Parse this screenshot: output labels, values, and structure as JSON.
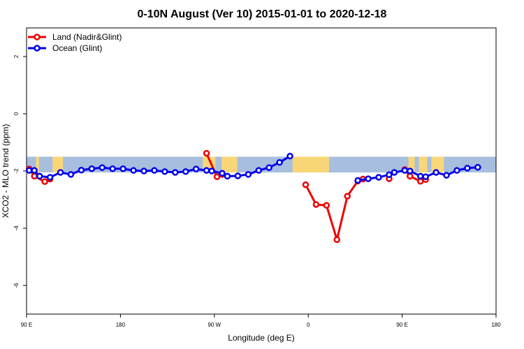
{
  "chart_data": {
    "type": "line",
    "title": "0-10N August (Ver 10)   2015-01-01 to 2020-12-18",
    "xlabel": "Longitude (deg E)",
    "ylabel": "XCO2 - MLO trend (ppm)",
    "x_axis_unit": "degrees east, continuous from 90 E through 180 to 540 (=180)",
    "xlim": [
      90,
      540
    ],
    "ylim": [
      -7,
      3
    ],
    "x_ticks": [
      {
        "value": 90,
        "label": "90 E"
      },
      {
        "value": 180,
        "label": "180"
      },
      {
        "value": 270,
        "label": "90 W"
      },
      {
        "value": 360,
        "label": "0"
      },
      {
        "value": 450,
        "label": "90 E"
      },
      {
        "value": 540,
        "label": "180"
      }
    ],
    "y_ticks": [
      {
        "value": -6,
        "label": "-6"
      },
      {
        "value": -4,
        "label": "-4"
      },
      {
        "value": -2,
        "label": "-2"
      },
      {
        "value": 0,
        "label": "0"
      },
      {
        "value": 2,
        "label": "2"
      }
    ],
    "latitude_band": {
      "ylow": -2.05,
      "yhigh": -1.5,
      "ocean_color": "#a7bedf",
      "land_color": "#f9d778"
    },
    "land_segments": [
      [
        99,
        102
      ],
      [
        115,
        125
      ],
      [
        259,
        271
      ],
      [
        277,
        292
      ],
      [
        345,
        365
      ],
      [
        365,
        380
      ],
      [
        456,
        462
      ],
      [
        466,
        474
      ],
      [
        478,
        490
      ]
    ],
    "legend_position": "top-left",
    "series": [
      {
        "name": "Land (Nadir&Glint)",
        "color": "#ee0000",
        "segments": [
          [
            [
              92.5,
              -1.93
            ],
            [
              97.5,
              -2.18
            ],
            [
              107.5,
              -2.37
            ],
            [
              112.5,
              -2.28
            ]
          ],
          [
            [
              262.5,
              -1.38
            ],
            [
              272.5,
              -2.2
            ],
            [
              277.5,
              -2.12
            ]
          ],
          [
            [
              357.5,
              -2.48
            ],
            [
              367.5,
              -3.17
            ],
            [
              377.5,
              -3.2
            ],
            [
              387.5,
              -4.4
            ],
            [
              397.5,
              -2.88
            ],
            [
              407.5,
              -2.35
            ],
            [
              412.5,
              -2.28
            ]
          ],
          [
            [
              437.5,
              -2.27
            ]
          ],
          [
            [
              452.5,
              -1.95
            ],
            [
              457.5,
              -2.18
            ],
            [
              467.5,
              -2.36
            ],
            [
              472.5,
              -2.3
            ]
          ]
        ]
      },
      {
        "name": "Ocean (Glint)",
        "color": "#0000ee",
        "segments": [
          [
            [
              92.5,
              -1.98
            ],
            [
              97.5,
              -1.98
            ],
            [
              102.5,
              -2.18
            ],
            [
              112.5,
              -2.22
            ],
            [
              122.5,
              -2.05
            ],
            [
              132.5,
              -2.12
            ],
            [
              142.5,
              -1.97
            ],
            [
              152.5,
              -1.92
            ],
            [
              162.5,
              -1.88
            ],
            [
              172.5,
              -1.92
            ],
            [
              182.5,
              -1.92
            ],
            [
              192.5,
              -1.98
            ],
            [
              202.5,
              -2.0
            ],
            [
              212.5,
              -1.98
            ],
            [
              222.5,
              -2.02
            ],
            [
              232.5,
              -2.05
            ],
            [
              242.5,
              -2.02
            ],
            [
              252.5,
              -1.93
            ],
            [
              262.5,
              -1.98
            ],
            [
              267.5,
              -2.0
            ],
            [
              277.5,
              -2.08
            ],
            [
              282.5,
              -2.18
            ],
            [
              292.5,
              -2.17
            ],
            [
              302.5,
              -2.12
            ],
            [
              312.5,
              -1.98
            ],
            [
              322.5,
              -1.88
            ],
            [
              332.5,
              -1.7
            ],
            [
              342.5,
              -1.48
            ]
          ],
          [
            [
              407.5,
              -2.33
            ],
            [
              417.5,
              -2.27
            ],
            [
              427.5,
              -2.22
            ],
            [
              437.5,
              -2.13
            ],
            [
              442.5,
              -2.05
            ],
            [
              452.5,
              -1.98
            ],
            [
              457.5,
              -2.0
            ],
            [
              467.5,
              -2.18
            ],
            [
              472.5,
              -2.2
            ],
            [
              482.5,
              -2.05
            ],
            [
              492.5,
              -2.15
            ],
            [
              502.5,
              -1.98
            ],
            [
              512.5,
              -1.9
            ],
            [
              522.5,
              -1.87
            ]
          ]
        ]
      }
    ]
  }
}
